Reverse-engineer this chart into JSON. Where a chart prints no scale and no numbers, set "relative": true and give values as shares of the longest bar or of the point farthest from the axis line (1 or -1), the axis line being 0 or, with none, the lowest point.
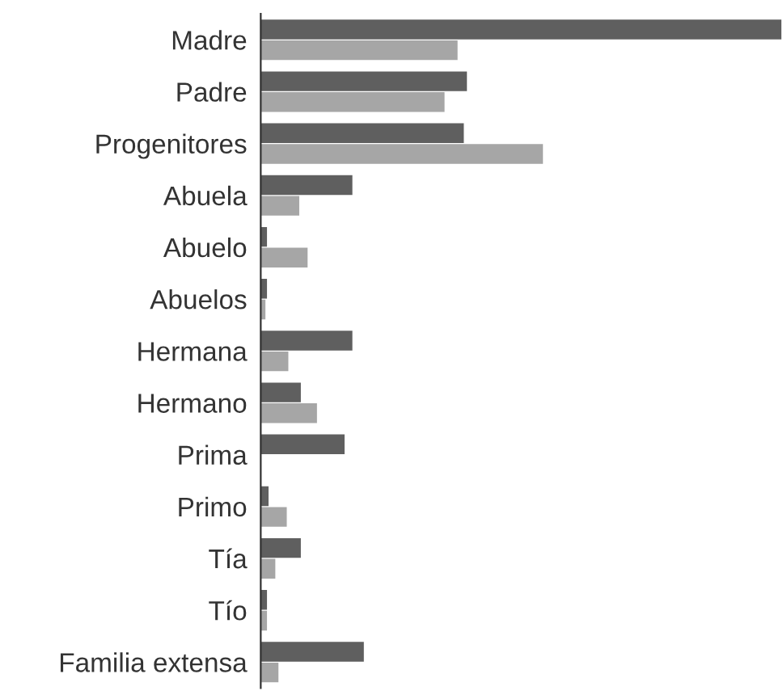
{
  "chart_data": {
    "type": "bar",
    "orientation": "horizontal",
    "relative": true,
    "categories": [
      "Madre",
      "Padre",
      "Progenitores",
      "Abuela",
      "Abuelo",
      "Abuelos",
      "Hermana",
      "Hermano",
      "Prima",
      "Primo",
      "Tía",
      "Tío",
      "Familia extensa"
    ],
    "series": [
      {
        "color": "#5f5f5f",
        "values": [
          1.0,
          0.396,
          0.39,
          0.176,
          0.012,
          0.012,
          0.176,
          0.077,
          0.161,
          0.015,
          0.077,
          0.012,
          0.198
        ]
      },
      {
        "color": "#a6a6a6",
        "values": [
          0.378,
          0.353,
          0.542,
          0.074,
          0.09,
          0.009,
          0.053,
          0.108,
          0,
          0.05,
          0.028,
          0.012,
          0.034
        ]
      }
    ],
    "grid": false,
    "legend": false
  }
}
